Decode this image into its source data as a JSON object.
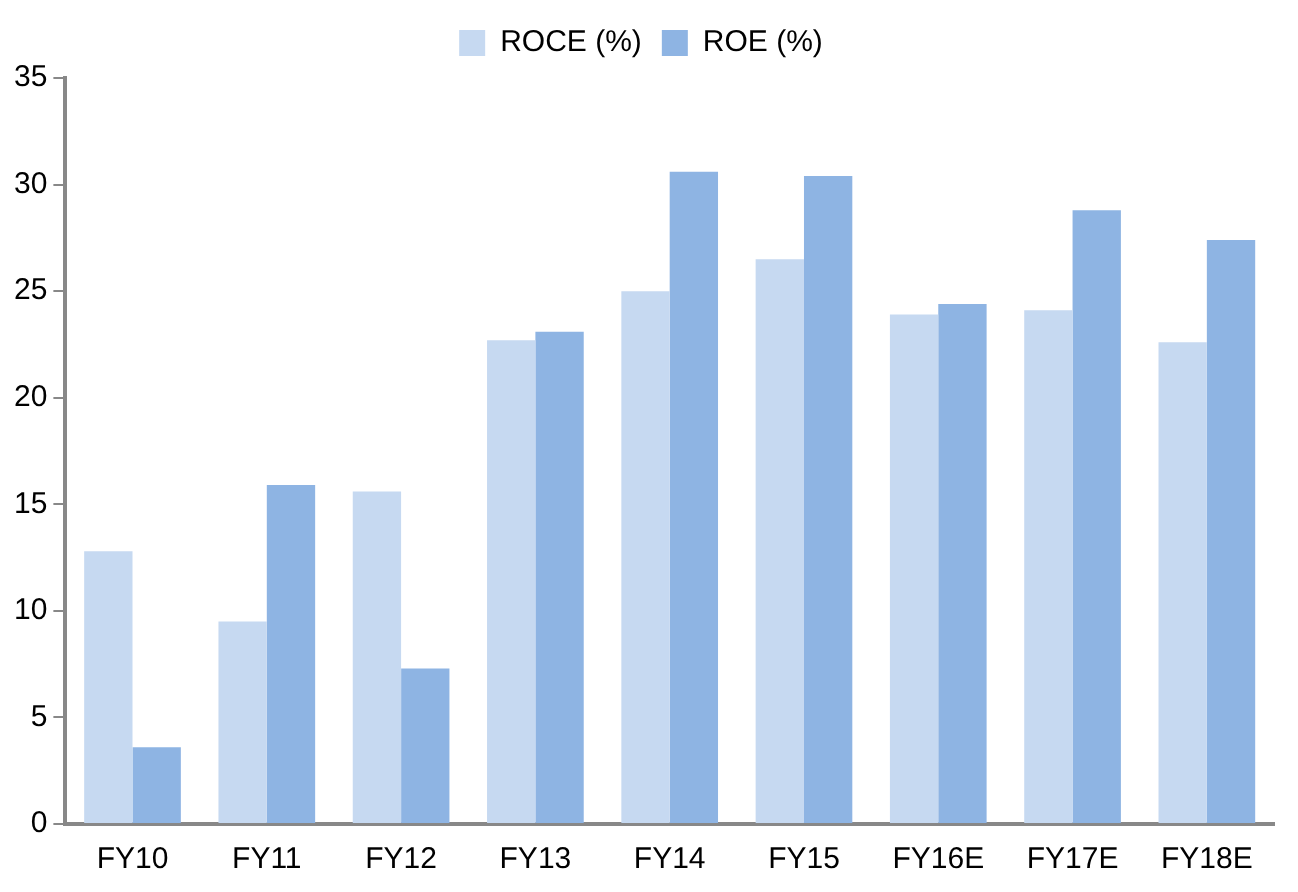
{
  "chart_data": {
    "type": "bar",
    "categories": [
      "FY10",
      "FY11",
      "FY12",
      "FY13",
      "FY14",
      "FY15",
      "FY16E",
      "FY17E",
      "FY18E"
    ],
    "series": [
      {
        "name": "ROCE (%)",
        "color": "#c6d9f1",
        "values": [
          12.8,
          9.5,
          15.6,
          22.7,
          25.0,
          26.5,
          23.9,
          24.1,
          22.6
        ]
      },
      {
        "name": "ROE (%)",
        "color": "#8eb4e3",
        "values": [
          3.6,
          15.9,
          7.3,
          23.1,
          30.6,
          30.4,
          24.4,
          28.8,
          27.4
        ]
      }
    ],
    "ylim": [
      0,
      35
    ],
    "yticks": [
      0,
      5,
      10,
      15,
      20,
      25,
      30,
      35
    ],
    "grid": false,
    "legend": "top"
  }
}
